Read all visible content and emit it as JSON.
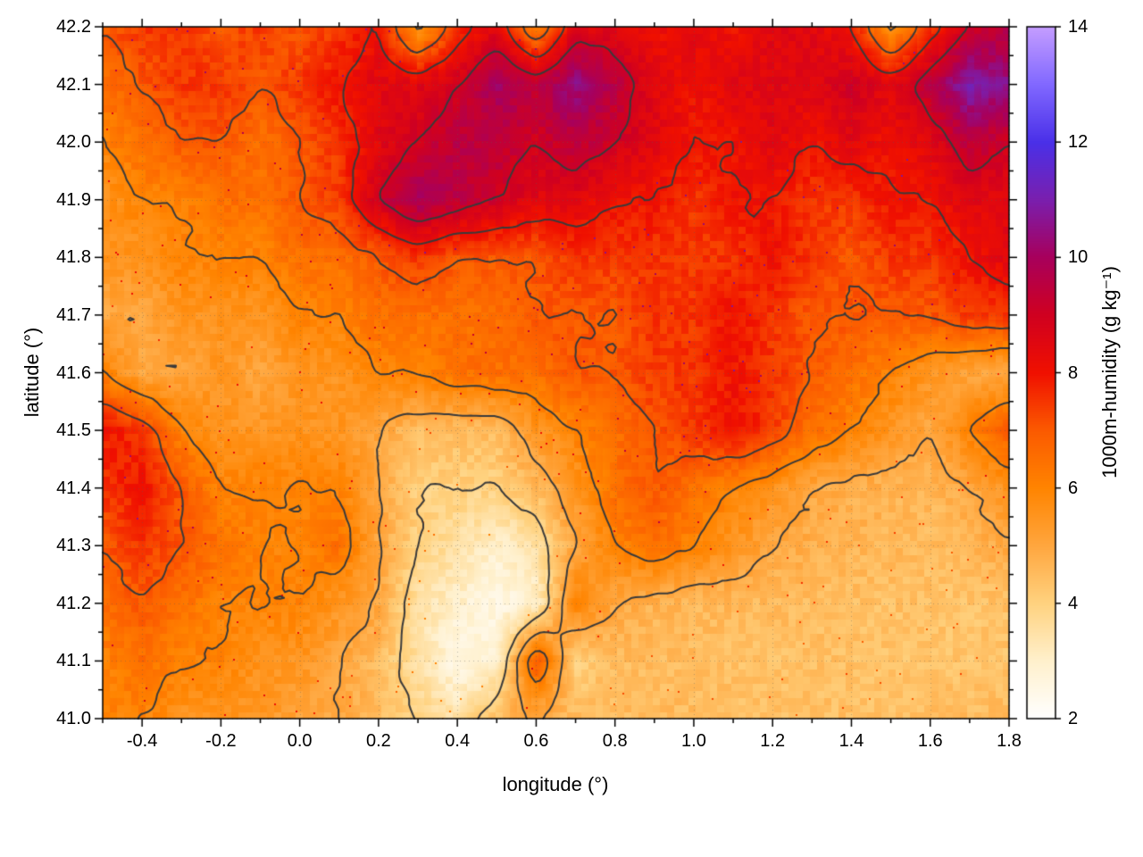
{
  "figure": {
    "background": "#ffffff",
    "border_color": "#000000"
  },
  "chart_data": {
    "type": "heatmap",
    "title": "",
    "xlabel": "longitude (°)",
    "ylabel": "latitude (°)",
    "xlim": [
      -0.5,
      1.8
    ],
    "ylim": [
      41.0,
      42.2
    ],
    "grid": true,
    "grid_style": "dotted",
    "xtick_values": [
      -0.4,
      -0.2,
      0.0,
      0.2,
      0.4,
      0.6,
      0.8,
      1.0,
      1.2,
      1.4,
      1.6,
      1.8
    ],
    "xtick_labels": [
      "-0.4",
      "-0.2",
      "0.0",
      "0.2",
      "0.4",
      "0.6",
      "0.8",
      "1.0",
      "1.2",
      "1.4",
      "1.6",
      "1.8"
    ],
    "x_minor_step": 0.1,
    "ytick_values": [
      41.0,
      41.1,
      41.2,
      41.3,
      41.4,
      41.5,
      41.6,
      41.7,
      41.8,
      41.9,
      42.0,
      42.1,
      42.2
    ],
    "ytick_labels": [
      "41.0",
      "41.1",
      "41.2",
      "41.3",
      "41.4",
      "41.5",
      "41.6",
      "41.7",
      "41.8",
      "41.9",
      "42.0",
      "42.1",
      "42.2"
    ],
    "y_minor_step": 0.05,
    "colorbar": {
      "label": "1000m-humidity (g kg⁻¹)",
      "range": [
        2,
        14
      ],
      "tick_values": [
        2,
        4,
        6,
        8,
        10,
        12,
        14
      ],
      "tick_labels": [
        "2",
        "4",
        "6",
        "8",
        "10",
        "12",
        "14"
      ],
      "stops": [
        [
          2,
          "#ffffff"
        ],
        [
          3,
          "#fff0cc"
        ],
        [
          4,
          "#ffd27f"
        ],
        [
          5,
          "#ffa63e"
        ],
        [
          6,
          "#ff8400"
        ],
        [
          7,
          "#fb5a00"
        ],
        [
          8,
          "#f01000"
        ],
        [
          9,
          "#d00020"
        ],
        [
          10,
          "#a8005c"
        ],
        [
          11,
          "#7a1fae"
        ],
        [
          12,
          "#4a30e8"
        ],
        [
          13,
          "#8168ff"
        ],
        [
          14,
          "#c49dff"
        ]
      ]
    },
    "contours": {
      "levels": [
        4,
        5,
        6,
        7,
        8,
        9
      ],
      "color": "#3a3a3a",
      "line_width": 2
    },
    "field": {
      "x_start": -0.5,
      "x_step": 0.1,
      "y_start": 42.2,
      "y_step": -0.1,
      "units": "g/kg",
      "values": [
        [
          7.0,
          7.5,
          7.5,
          7.0,
          7.5,
          7.0,
          7.5,
          8.0,
          5.5,
          7.5,
          8.5,
          6.0,
          8.5,
          8.5,
          8.0,
          8.5,
          8.0,
          8.5,
          8.5,
          8.0,
          5.5,
          7.5,
          9.0,
          9.5
        ],
        [
          6.5,
          7.0,
          7.5,
          7.5,
          7.0,
          7.5,
          8.0,
          8.5,
          8.5,
          9.0,
          10.0,
          9.5,
          10.5,
          9.5,
          8.5,
          8.0,
          8.5,
          8.5,
          8.5,
          9.0,
          8.5,
          9.5,
          11.0,
          10.5
        ],
        [
          6.0,
          6.5,
          7.0,
          7.0,
          6.5,
          7.0,
          7.5,
          8.5,
          9.0,
          9.5,
          9.5,
          9.0,
          9.5,
          9.0,
          8.5,
          8.0,
          8.0,
          8.5,
          8.0,
          8.5,
          8.0,
          8.5,
          9.5,
          9.0
        ],
        [
          5.5,
          6.0,
          6.0,
          6.5,
          6.5,
          7.0,
          7.5,
          9.0,
          10.0,
          9.5,
          9.0,
          8.5,
          8.5,
          8.0,
          8.0,
          7.5,
          8.0,
          8.0,
          7.5,
          7.5,
          8.0,
          8.0,
          8.5,
          8.5
        ],
        [
          5.5,
          5.5,
          6.0,
          6.0,
          6.0,
          6.5,
          6.5,
          7.0,
          7.5,
          7.0,
          7.0,
          7.0,
          7.5,
          7.5,
          7.5,
          7.5,
          7.5,
          8.0,
          7.5,
          7.0,
          7.5,
          7.5,
          8.0,
          8.5
        ],
        [
          5.0,
          5.0,
          5.5,
          5.5,
          5.5,
          6.0,
          6.0,
          6.5,
          6.5,
          6.5,
          6.5,
          7.0,
          7.0,
          7.0,
          7.5,
          7.5,
          8.0,
          7.5,
          7.0,
          7.0,
          7.0,
          7.0,
          7.5,
          7.5
        ],
        [
          6.0,
          5.0,
          5.0,
          5.5,
          5.0,
          5.5,
          5.5,
          6.0,
          6.0,
          6.5,
          6.5,
          6.5,
          7.0,
          7.0,
          7.5,
          7.5,
          8.0,
          7.5,
          7.0,
          6.5,
          6.0,
          5.5,
          5.0,
          5.0
        ],
        [
          8.0,
          7.5,
          6.0,
          5.5,
          5.5,
          5.5,
          5.5,
          5.0,
          4.5,
          4.5,
          4.5,
          5.5,
          6.0,
          6.5,
          7.0,
          7.5,
          8.0,
          7.5,
          6.5,
          6.0,
          5.5,
          5.0,
          6.0,
          7.0
        ],
        [
          7.5,
          8.0,
          7.0,
          6.0,
          6.0,
          6.0,
          6.0,
          5.0,
          4.0,
          4.0,
          4.0,
          4.5,
          5.5,
          6.5,
          7.0,
          6.5,
          6.0,
          5.5,
          5.0,
          4.8,
          4.7,
          4.6,
          5.0,
          5.5
        ],
        [
          7.0,
          7.5,
          7.0,
          6.5,
          6.0,
          6.0,
          6.5,
          5.0,
          4.0,
          3.5,
          3.0,
          3.5,
          5.0,
          6.0,
          6.5,
          6.0,
          5.5,
          5.0,
          4.8,
          4.7,
          4.6,
          4.5,
          4.6,
          5.0
        ],
        [
          6.5,
          7.0,
          6.5,
          6.0,
          6.0,
          6.0,
          5.5,
          5.0,
          3.5,
          3.0,
          2.5,
          3.0,
          6.0,
          5.0,
          4.7,
          4.6,
          4.6,
          4.5,
          4.5,
          4.4,
          4.4,
          4.4,
          4.3,
          4.4
        ],
        [
          6.0,
          6.5,
          6.0,
          6.0,
          5.5,
          5.5,
          5.0,
          4.5,
          3.5,
          2.5,
          3.0,
          7.0,
          4.0,
          4.5,
          4.5,
          4.5,
          4.4,
          4.4,
          4.4,
          4.4,
          4.3,
          4.3,
          4.3,
          4.3
        ],
        [
          6.0,
          6.0,
          5.5,
          5.5,
          5.5,
          5.0,
          5.0,
          4.5,
          4.0,
          3.5,
          4.5,
          5.0,
          4.5,
          4.5,
          4.5,
          4.5,
          4.4,
          4.4,
          4.4,
          4.4,
          4.4,
          4.5,
          4.5,
          4.5
        ]
      ]
    }
  }
}
